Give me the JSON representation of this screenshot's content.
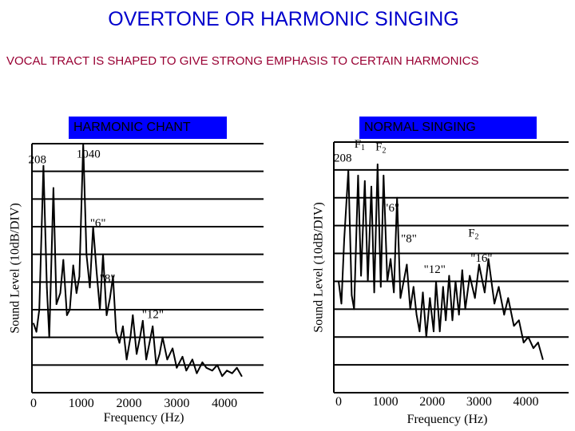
{
  "title": "OVERTONE OR HARMONIC SINGING",
  "subtitle": "VOCAL TRACT IS SHAPED TO GIVE STRONG EMPHASIS TO CERTAIN HARMONICS",
  "colors": {
    "title": "#0000cc",
    "subtitle": "#990033",
    "label_bg": "#0000ff",
    "ink": "#000000"
  },
  "chart_data": [
    {
      "type": "line",
      "panel_label": "HARMONIC CHANT",
      "xlabel": "Frequency (Hz)",
      "ylabel": "Sound Level (10dB/DIV)",
      "xticks": [
        "0",
        "1000",
        "2000",
        "3000",
        "4000"
      ],
      "xlim": [
        0,
        4400
      ],
      "y_divisions": 9,
      "ylim": [
        0,
        90
      ],
      "grid": true,
      "annotations": [
        {
          "text": "208",
          "x": 80,
          "y": 83
        },
        {
          "text": "1040",
          "x": 1150,
          "y": 85
        },
        {
          "text": "\"6\"",
          "x": 1350,
          "y": 60
        },
        {
          "text": "\"8\"",
          "x": 1550,
          "y": 40
        },
        {
          "text": "\"12\"",
          "x": 2500,
          "y": 27
        }
      ],
      "x": [
        0,
        60,
        120,
        208,
        280,
        330,
        416,
        480,
        560,
        624,
        700,
        760,
        832,
        900,
        960,
        1040,
        1110,
        1180,
        1248,
        1320,
        1390,
        1456,
        1530,
        1600,
        1664,
        1730,
        1800,
        1872,
        1950,
        2030,
        2080,
        2160,
        2230,
        2288,
        2360,
        2430,
        2496,
        2570,
        2640,
        2704,
        2800,
        2912,
        3000,
        3120,
        3200,
        3328,
        3420,
        3536,
        3620,
        3744,
        3850,
        3952,
        4050,
        4160,
        4260,
        4360
      ],
      "values": [
        25,
        22,
        30,
        82,
        38,
        20,
        74,
        32,
        36,
        48,
        28,
        30,
        46,
        36,
        42,
        90,
        50,
        38,
        60,
        44,
        30,
        50,
        28,
        34,
        42,
        22,
        18,
        24,
        12,
        20,
        28,
        14,
        20,
        26,
        12,
        18,
        24,
        10,
        14,
        20,
        12,
        16,
        9,
        13,
        8,
        12,
        7,
        11,
        9,
        8,
        10,
        6,
        8,
        7,
        9,
        6
      ]
    },
    {
      "type": "line",
      "panel_label": "NORMAL SINGING",
      "xlabel": "Frequency (Hz)",
      "ylabel": "Sound Level (10dB/DIV)",
      "xticks": [
        "0",
        "1000",
        "2000",
        "3000",
        "4000"
      ],
      "xlim": [
        0,
        4400
      ],
      "y_divisions": 9,
      "ylim": [
        0,
        90
      ],
      "grid": true,
      "annotations": [
        {
          "text": "208",
          "x": 90,
          "y": 83
        },
        {
          "text": "F",
          "sub": "1",
          "x": 450,
          "y": 88
        },
        {
          "text": "F",
          "sub": "2",
          "x": 900,
          "y": 87
        },
        {
          "text": "\"6\"",
          "x": 1130,
          "y": 65
        },
        {
          "text": "\"8\"",
          "x": 1500,
          "y": 54
        },
        {
          "text": "F",
          "sub": "2",
          "x": 2880,
          "y": 56
        },
        {
          "text": "\"12\"",
          "x": 2050,
          "y": 43
        },
        {
          "text": "\"16\"",
          "x": 3050,
          "y": 47
        }
      ],
      "x": [
        0,
        60,
        120,
        208,
        280,
        330,
        416,
        480,
        560,
        624,
        700,
        760,
        832,
        900,
        960,
        1040,
        1110,
        1180,
        1248,
        1320,
        1390,
        1456,
        1530,
        1600,
        1664,
        1730,
        1800,
        1872,
        1950,
        2030,
        2080,
        2160,
        2230,
        2288,
        2360,
        2430,
        2496,
        2570,
        2640,
        2704,
        2800,
        2912,
        3000,
        3120,
        3200,
        3328,
        3420,
        3536,
        3620,
        3744,
        3850,
        3952,
        4050,
        4160,
        4260,
        4360
      ],
      "values": [
        40,
        32,
        55,
        80,
        35,
        30,
        78,
        42,
        76,
        40,
        74,
        36,
        82,
        38,
        78,
        40,
        48,
        36,
        70,
        34,
        40,
        46,
        30,
        38,
        28,
        22,
        36,
        20,
        34,
        22,
        40,
        22,
        38,
        26,
        42,
        26,
        40,
        28,
        44,
        30,
        42,
        34,
        46,
        36,
        48,
        32,
        38,
        28,
        34,
        24,
        26,
        18,
        20,
        16,
        18,
        12
      ]
    }
  ]
}
